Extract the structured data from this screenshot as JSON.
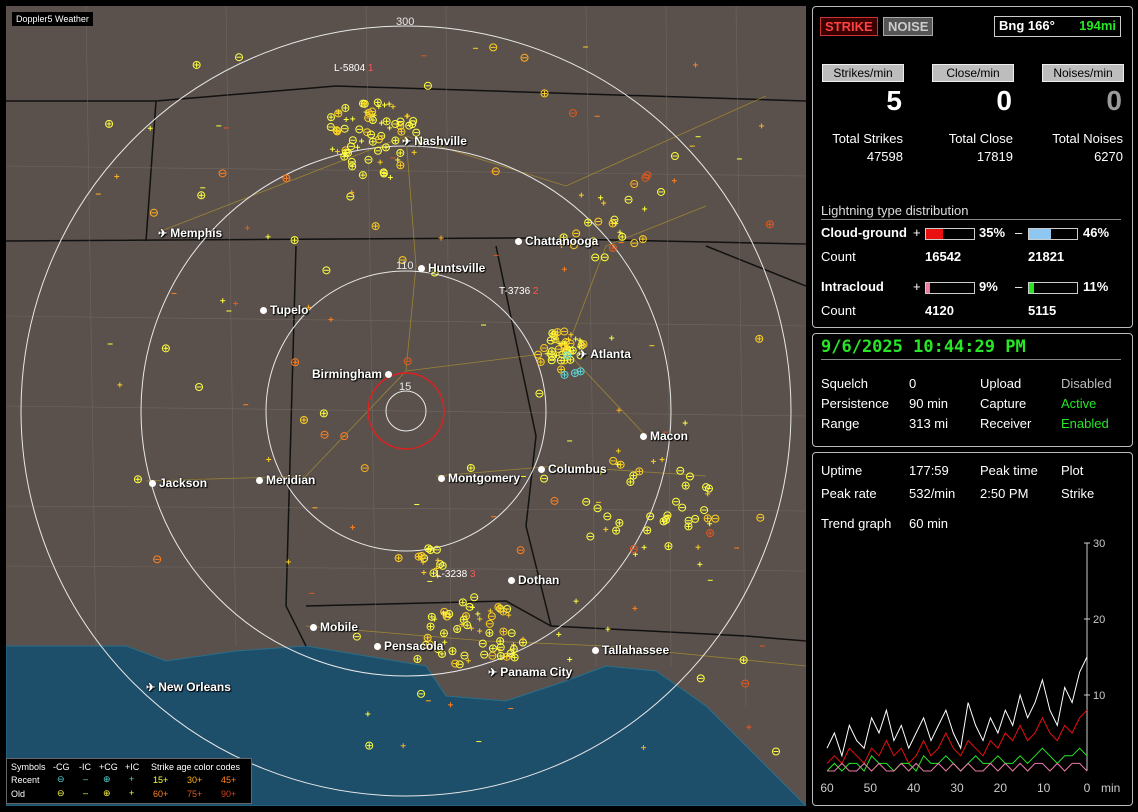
{
  "window_title": "Doppler5 Weather",
  "map": {
    "cities": [
      {
        "name": "Nashville",
        "icon": "airport-icon"
      },
      {
        "name": "Memphis",
        "icon": "airport-icon"
      },
      {
        "name": "Chattanooga",
        "icon": "city-dot-icon"
      },
      {
        "name": "Huntsville",
        "icon": "city-dot-icon"
      },
      {
        "name": "Tupelo",
        "icon": "city-dot-icon"
      },
      {
        "name": "Atlanta",
        "icon": "airport-icon"
      },
      {
        "name": "Birmingham",
        "icon": "city-dot-icon"
      },
      {
        "name": "Macon",
        "icon": "city-dot-icon"
      },
      {
        "name": "Jackson",
        "icon": "city-dot-icon"
      },
      {
        "name": "Meridian",
        "icon": "city-dot-icon"
      },
      {
        "name": "Montgomery",
        "icon": "city-dot-icon"
      },
      {
        "name": "Columbus",
        "icon": "city-dot-icon"
      },
      {
        "name": "Dothan",
        "icon": "city-dot-icon"
      },
      {
        "name": "Mobile",
        "icon": "city-dot-icon"
      },
      {
        "name": "Pensacola",
        "icon": "city-dot-icon"
      },
      {
        "name": "Tallahassee",
        "icon": "city-dot-icon"
      },
      {
        "name": "Panama City",
        "icon": "airport-icon"
      },
      {
        "name": "New Orleans",
        "icon": "airport-icon"
      }
    ],
    "range_labels": [
      "300",
      "110",
      "15"
    ],
    "storm_tags": [
      {
        "text": "L-5804",
        "suffix": "1"
      },
      {
        "text": "T-3736",
        "suffix": "2"
      },
      {
        "text": "L-3238",
        "suffix": "3"
      }
    ],
    "legend": {
      "symbols_label": "Symbols",
      "columns": [
        "-CG",
        "-IC",
        "+CG",
        "+IC"
      ],
      "recent_label": "Recent",
      "old_label": "Old",
      "age_title": "Strike age color codes",
      "age_recent": [
        "15+",
        "30+",
        "45+"
      ],
      "age_old": [
        "60+",
        "75+",
        "90+"
      ]
    }
  },
  "mode_buttons": {
    "strike": "STRIKE",
    "noise": "NOISE"
  },
  "bearing": {
    "label": "Bng 166°",
    "distance": "194mi"
  },
  "rates": {
    "strikes_label": "Strikes/min",
    "strikes_value": "5",
    "close_label": "Close/min",
    "close_value": "0",
    "noises_label": "Noises/min",
    "noises_value": "0"
  },
  "totals": {
    "strikes_label": "Total Strikes",
    "strikes_value": "47598",
    "close_label": "Total Close",
    "close_value": "17819",
    "noises_label": "Total Noises",
    "noises_value": "6270"
  },
  "distribution": {
    "title": "Lightning type distribution",
    "cg_label": "Cloud-ground",
    "cg_pos_sign": "+",
    "cg_pos_pct": "35%",
    "cg_pos_fraction": 0.35,
    "cg_neg_sign": "–",
    "cg_neg_pct": "46%",
    "cg_neg_fraction": 0.46,
    "count_label": "Count",
    "cg_pos_count": "16542",
    "cg_neg_count": "21821",
    "ic_label": "Intracloud",
    "ic_pos_sign": "+",
    "ic_pos_pct": "9%",
    "ic_pos_fraction": 0.09,
    "ic_neg_sign": "–",
    "ic_neg_pct": "11%",
    "ic_neg_fraction": 0.11,
    "ic_pos_count": "4120",
    "ic_neg_count": "5115",
    "colors": {
      "cg_pos": "#e81010",
      "cg_neg": "#8ec8f2",
      "ic_pos": "#e87aa8",
      "ic_neg": "#26e626"
    }
  },
  "status": {
    "datetime": "9/6/2025 10:44:29 PM",
    "squelch_label": "Squelch",
    "squelch_value": "0",
    "persistence_label": "Persistence",
    "persistence_value": "90 min",
    "range_label": "Range",
    "range_value": "313 mi",
    "upload_label": "Upload",
    "upload_value": "Disabled",
    "capture_label": "Capture",
    "capture_value": "Active",
    "receiver_label": "Receiver",
    "receiver_value": "Enabled"
  },
  "stats": {
    "uptime_label": "Uptime",
    "uptime_value": "177:59",
    "peak_time_label": "Peak time",
    "peak_time_value": "2:50 PM",
    "plot_label": "Plot",
    "plot_value": "Strike",
    "peak_rate_label": "Peak rate",
    "peak_rate_value": "532/min",
    "trend_label": "Trend graph",
    "trend_value": "60 min"
  },
  "chart_data": {
    "type": "line",
    "xlabel": "min",
    "x_ticks": [
      "60",
      "50",
      "40",
      "30",
      "20",
      "10",
      "0"
    ],
    "xlim": [
      60,
      0
    ],
    "y_ticks": [
      "30",
      "20",
      "10"
    ],
    "ylim": [
      0,
      30
    ],
    "series": [
      {
        "color": "#ffffff",
        "values": [
          3,
          5,
          2,
          6,
          4,
          3,
          7,
          5,
          8,
          4,
          6,
          3,
          5,
          7,
          4,
          6,
          8,
          5,
          3,
          9,
          6,
          4,
          7,
          5,
          8,
          6,
          10,
          7,
          9,
          12,
          8,
          6,
          11,
          9,
          13,
          15
        ]
      },
      {
        "color": "#e81010",
        "values": [
          1,
          2,
          1,
          3,
          2,
          1,
          3,
          2,
          4,
          2,
          3,
          1,
          2,
          4,
          2,
          3,
          5,
          3,
          2,
          4,
          3,
          2,
          4,
          3,
          5,
          4,
          6,
          4,
          5,
          7,
          5,
          4,
          6,
          5,
          7,
          8
        ]
      },
      {
        "color": "#26e626",
        "values": [
          0,
          1,
          0,
          1,
          1,
          0,
          2,
          1,
          1,
          0,
          1,
          1,
          0,
          2,
          1,
          1,
          2,
          1,
          0,
          1,
          2,
          1,
          1,
          2,
          1,
          1,
          2,
          1,
          2,
          3,
          2,
          1,
          2,
          2,
          3,
          2
        ]
      },
      {
        "color": "#e87aa8",
        "values": [
          0,
          0,
          1,
          0,
          0,
          1,
          0,
          1,
          0,
          0,
          1,
          0,
          1,
          0,
          0,
          1,
          0,
          1,
          0,
          1,
          0,
          0,
          1,
          0,
          1,
          0,
          1,
          0,
          1,
          1,
          0,
          1,
          0,
          1,
          1,
          0
        ]
      }
    ]
  }
}
